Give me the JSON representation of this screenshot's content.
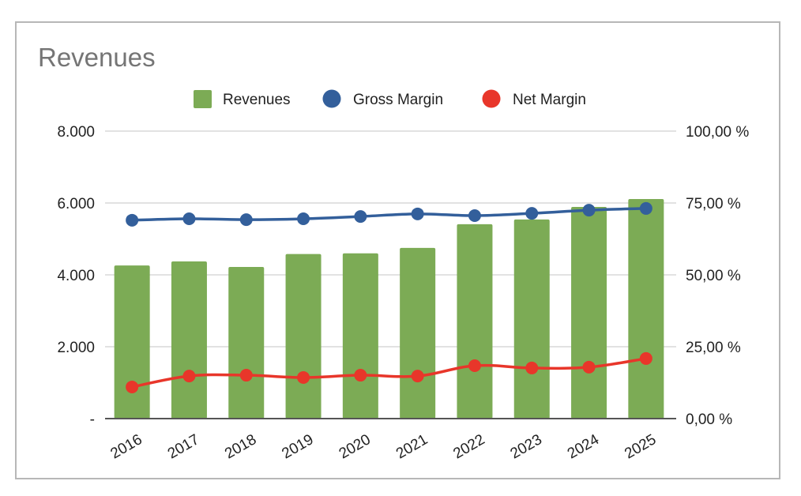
{
  "chart_data": {
    "type": "bar",
    "title": "Revenues",
    "categories": [
      "2016",
      "2017",
      "2018",
      "2019",
      "2020",
      "2021",
      "2022",
      "2023",
      "2024",
      "2025"
    ],
    "series": [
      {
        "name": "Revenues",
        "kind": "bar",
        "axis": "left",
        "color": "#7cab55",
        "values": [
          4260,
          4375,
          4220,
          4580,
          4600,
          4750,
          5410,
          5540,
          5890,
          6110
        ]
      },
      {
        "name": "Gross Margin",
        "kind": "line",
        "axis": "right",
        "color": "#335f9b",
        "unit": "%",
        "values": [
          69.0,
          69.5,
          69.2,
          69.5,
          70.3,
          71.2,
          70.6,
          71.4,
          72.5,
          73.1
        ]
      },
      {
        "name": "Net Margin",
        "kind": "line",
        "axis": "right",
        "color": "#e8362a",
        "unit": "%",
        "values": [
          11.0,
          14.8,
          15.1,
          14.3,
          15.1,
          14.8,
          18.4,
          17.6,
          17.9,
          20.9
        ]
      }
    ],
    "left_axis": {
      "range": [
        0,
        8000
      ],
      "ticks": [
        0,
        2000,
        4000,
        6000,
        8000
      ],
      "tick_labels": [
        "-",
        "2.000",
        "4.000",
        "6.000",
        "8.000"
      ]
    },
    "right_axis": {
      "range": [
        0,
        100
      ],
      "ticks": [
        0,
        25,
        50,
        75,
        100
      ],
      "tick_labels": [
        "0,00 %",
        "25,00 %",
        "50,00 %",
        "75,00 %",
        "100,00 %"
      ]
    },
    "xlabel": "",
    "ylabel": "",
    "y2label": "",
    "grid": true,
    "legend": {
      "position": "top",
      "items": [
        "Revenues",
        "Gross Margin",
        "Net Margin"
      ]
    },
    "colors": {
      "gridline": "#d9d9d9",
      "baseline": "#555555",
      "title": "#757575"
    }
  }
}
